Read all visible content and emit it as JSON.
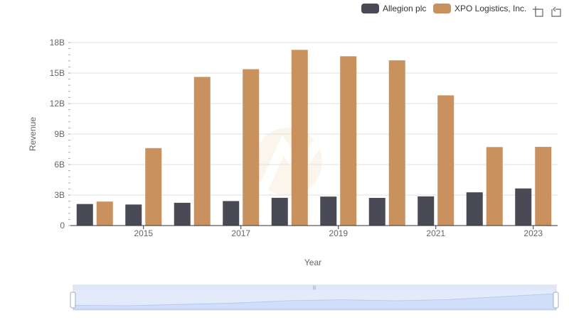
{
  "chart_data": {
    "type": "bar",
    "title": "",
    "xlabel": "Year",
    "ylabel": "Revenue",
    "x": [
      2014,
      2015,
      2016,
      2017,
      2018,
      2019,
      2020,
      2021,
      2022,
      2023
    ],
    "x_tick_labels": [
      "2015",
      "2017",
      "2019",
      "2021",
      "2023"
    ],
    "x_tick_values": [
      2015,
      2017,
      2019,
      2021,
      2023
    ],
    "y_tick_labels": [
      "0",
      "3B",
      "6B",
      "9B",
      "12B",
      "15B",
      "18B"
    ],
    "y_tick_values": [
      0,
      3,
      6,
      9,
      12,
      15,
      18
    ],
    "ylim": [
      0,
      18
    ],
    "y_unit": "billions",
    "grid": true,
    "legend_position": "top-right",
    "series": [
      {
        "name": "Allegion plc",
        "color": "#4a4a57",
        "values": [
          2.12,
          2.07,
          2.24,
          2.41,
          2.73,
          2.85,
          2.72,
          2.87,
          3.27,
          3.65
        ]
      },
      {
        "name": "XPO Logistics, Inc.",
        "color": "#c8915e",
        "values": [
          2.36,
          7.62,
          14.62,
          15.38,
          17.28,
          16.65,
          16.25,
          12.81,
          7.72,
          7.74
        ]
      }
    ]
  },
  "toolbox": {
    "zoom_icon": "zoom-select-icon",
    "restore_icon": "zoom-restore-icon"
  },
  "datazoom": {
    "start_percent": 0,
    "end_percent": 100,
    "handle_grip": "|||"
  },
  "colors": {
    "grid": "#e0e0e0",
    "axis": "#333333",
    "tick_text": "#666666",
    "slider_fill": "#d6e2fb",
    "slider_border": "#d0d6e0"
  }
}
